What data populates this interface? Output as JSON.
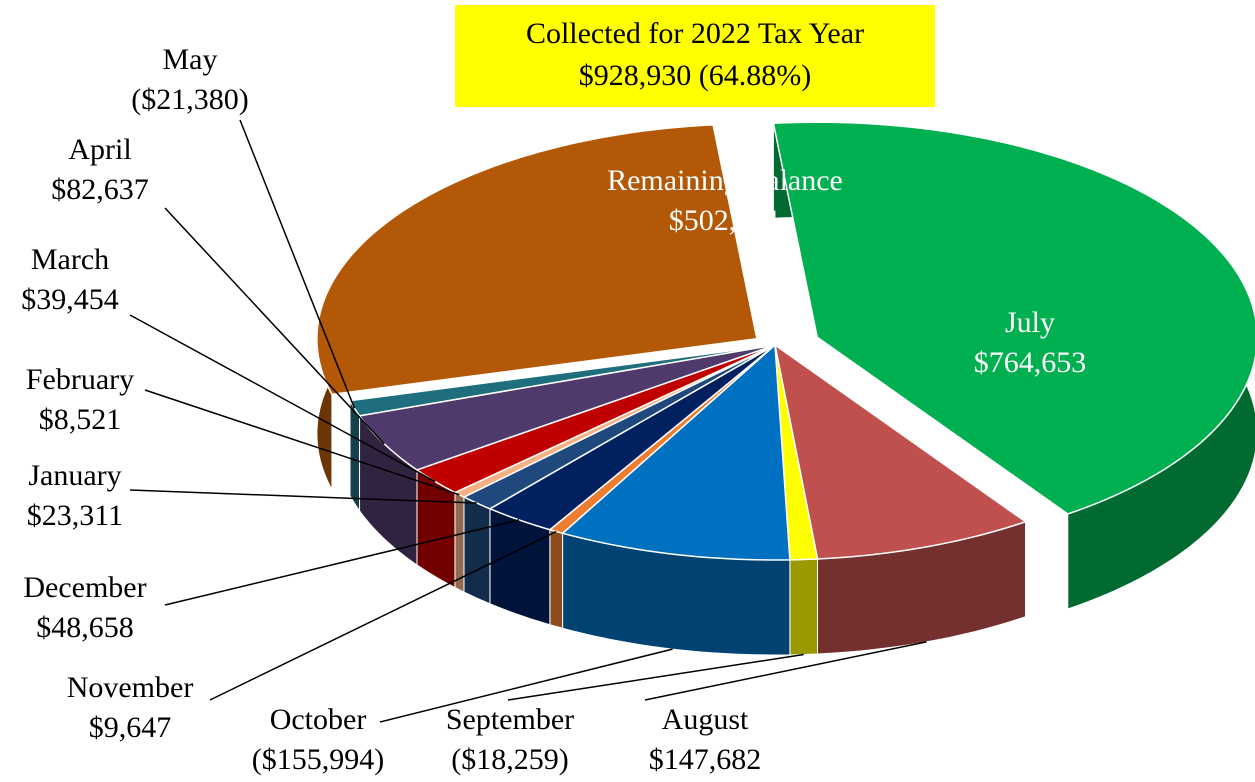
{
  "chart_data": {
    "type": "pie",
    "title": "Collected for 2022 Tax Year",
    "subtitle": "$928,930 (64.88%)",
    "categories": [
      "Remaining Balance",
      "July",
      "August",
      "September",
      "October",
      "November",
      "December",
      "January",
      "February",
      "March",
      "April",
      "May"
    ],
    "values": [
      502761,
      764653,
      147682,
      -18259,
      -155994,
      9647,
      48658,
      23311,
      8521,
      39454,
      82637,
      -21380
    ],
    "value_labels": [
      "$502,761",
      "$764,653",
      "$147,682",
      "($18,259)",
      "($155,994)",
      "$9,647",
      "$48,658",
      "$23,311",
      "$8,521",
      "$39,454",
      "$82,637",
      "($21,380)"
    ],
    "colors": [
      "#b35806",
      "#00b050",
      "#c0504d",
      "#ffff00",
      "#0070c0",
      "#ed7d31",
      "#002060",
      "#1f497d",
      "#f4b183",
      "#c00000",
      "#4f3a6b",
      "#1f6e7e"
    ]
  }
}
